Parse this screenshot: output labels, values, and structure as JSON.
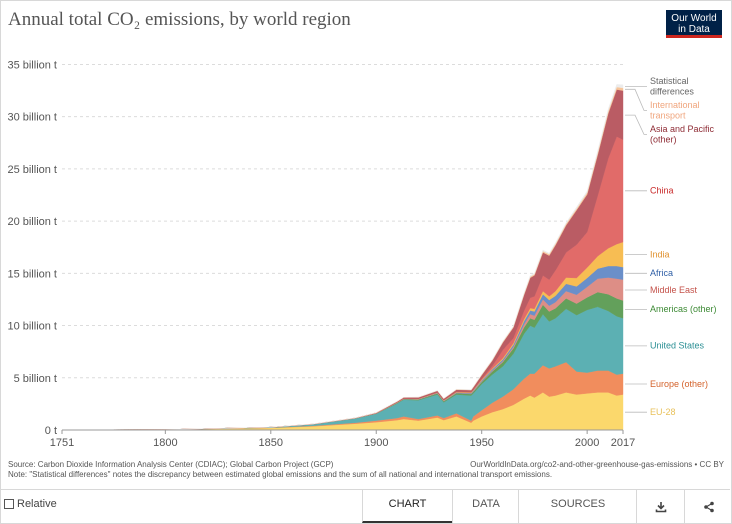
{
  "header": {
    "title": "Annual total CO₂ emissions, by world region",
    "logo_line1": "Our World",
    "logo_line2": "in Data",
    "logo_bg": "#002147",
    "logo_accent": "#ce261e"
  },
  "chart_data": {
    "type": "area",
    "stacked": true,
    "x": [
      1751,
      1800,
      1850,
      1870,
      1890,
      1900,
      1910,
      1913,
      1920,
      1929,
      1932,
      1938,
      1945,
      1946,
      1950,
      1955,
      1960,
      1965,
      1970,
      1973,
      1975,
      1979,
      1982,
      1985,
      1990,
      1995,
      2000,
      2005,
      2010,
      2014,
      2017
    ],
    "series": [
      {
        "name": "EU-28",
        "color": "#fbd86c",
        "label_color": "#e8c15b",
        "values": [
          0.01,
          0.03,
          0.2,
          0.35,
          0.6,
          0.75,
          0.95,
          1.05,
          0.9,
          1.2,
          0.95,
          1.3,
          0.7,
          0.9,
          1.3,
          1.7,
          2.0,
          2.4,
          3.0,
          3.3,
          3.1,
          3.6,
          3.2,
          3.3,
          3.6,
          3.4,
          3.5,
          3.6,
          3.6,
          3.3,
          3.4
        ]
      },
      {
        "name": "Europe (other)",
        "color": "#f18d5d",
        "label_color": "#d4632c",
        "values": [
          0,
          0,
          0.02,
          0.05,
          0.1,
          0.15,
          0.2,
          0.25,
          0.15,
          0.2,
          0.2,
          0.3,
          0.2,
          0.4,
          0.6,
          0.9,
          1.2,
          1.5,
          1.9,
          2.1,
          2.3,
          2.6,
          2.7,
          2.8,
          2.9,
          2.2,
          2.0,
          2.1,
          2.1,
          2.0,
          2.0
        ]
      },
      {
        "name": "United States",
        "color": "#5cb0b3",
        "label_color": "#2b8f94",
        "values": [
          0,
          0.01,
          0.05,
          0.15,
          0.4,
          0.65,
          1.4,
          1.6,
          1.8,
          2.0,
          1.5,
          1.8,
          2.4,
          2.2,
          2.5,
          2.7,
          2.9,
          3.4,
          4.3,
          4.6,
          4.4,
          4.9,
          4.5,
          4.6,
          5.1,
          5.4,
          6.0,
          6.1,
          5.7,
          5.6,
          5.3
        ]
      },
      {
        "name": "Americas (other)",
        "color": "#63a05b",
        "label_color": "#3d8a35",
        "values": [
          0,
          0,
          0,
          0.01,
          0.02,
          0.03,
          0.05,
          0.06,
          0.07,
          0.1,
          0.1,
          0.12,
          0.15,
          0.16,
          0.2,
          0.3,
          0.4,
          0.5,
          0.6,
          0.7,
          0.75,
          0.9,
          0.95,
          0.95,
          1.0,
          1.1,
          1.2,
          1.4,
          1.6,
          1.7,
          1.7
        ]
      },
      {
        "name": "Middle East",
        "color": "#dd8e86",
        "label_color": "#c4524a",
        "values": [
          0,
          0,
          0,
          0,
          0,
          0,
          0,
          0,
          0.01,
          0.01,
          0.01,
          0.02,
          0.03,
          0.03,
          0.05,
          0.08,
          0.1,
          0.15,
          0.3,
          0.4,
          0.4,
          0.5,
          0.55,
          0.6,
          0.7,
          0.85,
          1.0,
          1.3,
          1.6,
          1.9,
          2.0
        ]
      },
      {
        "name": "Africa",
        "color": "#6a8fc9",
        "label_color": "#2f5fa6",
        "values": [
          0,
          0,
          0,
          0,
          0.005,
          0.01,
          0.02,
          0.02,
          0.03,
          0.04,
          0.04,
          0.05,
          0.06,
          0.07,
          0.1,
          0.12,
          0.15,
          0.2,
          0.3,
          0.35,
          0.4,
          0.5,
          0.55,
          0.6,
          0.7,
          0.8,
          0.85,
          0.95,
          1.1,
          1.2,
          1.2
        ]
      },
      {
        "name": "India",
        "color": "#f7bd53",
        "label_color": "#e0922f",
        "values": [
          0,
          0,
          0,
          0,
          0.01,
          0.02,
          0.03,
          0.03,
          0.03,
          0.04,
          0.04,
          0.05,
          0.06,
          0.06,
          0.07,
          0.08,
          0.12,
          0.15,
          0.2,
          0.22,
          0.25,
          0.3,
          0.35,
          0.45,
          0.6,
          0.8,
          1.0,
          1.2,
          1.7,
          2.1,
          2.4
        ]
      },
      {
        "name": "China",
        "color": "#e16b69",
        "label_color": "#c92a2a",
        "values": [
          0,
          0,
          0,
          0,
          0,
          0,
          0.01,
          0.01,
          0.01,
          0.01,
          0.01,
          0.02,
          0.02,
          0.02,
          0.08,
          0.25,
          0.8,
          0.5,
          0.8,
          1.0,
          1.2,
          1.5,
          1.6,
          2.0,
          2.4,
          3.2,
          3.4,
          5.8,
          8.6,
          10.3,
          9.8
        ]
      },
      {
        "name": "Asia and Pacific (other)",
        "color": "#ba5c64",
        "label_color": "#8e2b34",
        "values": [
          0,
          0,
          0,
          0.01,
          0.02,
          0.05,
          0.08,
          0.1,
          0.12,
          0.15,
          0.15,
          0.2,
          0.2,
          0.25,
          0.35,
          0.5,
          0.7,
          1.0,
          1.5,
          1.9,
          2.0,
          2.2,
          2.3,
          2.4,
          2.6,
          3.3,
          3.6,
          3.9,
          4.3,
          4.5,
          4.7
        ]
      },
      {
        "name": "International transport",
        "color": "#f7c59a",
        "label_color": "#f0a57d",
        "values": [
          0,
          0,
          0,
          0,
          0,
          0,
          0.01,
          0.01,
          0.02,
          0.02,
          0.02,
          0.03,
          0.03,
          0.04,
          0.05,
          0.06,
          0.07,
          0.08,
          0.1,
          0.12,
          0.12,
          0.13,
          0.14,
          0.14,
          0.15,
          0.15,
          0.18,
          0.2,
          0.22,
          0.24,
          0.25
        ]
      },
      {
        "name": "Statistical differences",
        "color": "#ececec",
        "label_color": "#666666",
        "values": [
          0,
          0,
          0,
          0,
          0,
          0,
          0,
          0,
          0.01,
          0.01,
          0.01,
          0.02,
          0.02,
          0.02,
          0.03,
          0.04,
          0.05,
          0.06,
          0.08,
          0.1,
          0.1,
          0.1,
          0.1,
          0.1,
          0.1,
          0.15,
          0.15,
          0.2,
          0.2,
          0.25,
          0.3
        ]
      }
    ],
    "legend_labels": [
      {
        "lines": [
          "Statistical",
          "differences"
        ]
      },
      {
        "lines": [
          "International",
          "transport"
        ]
      },
      {
        "lines": [
          "Asia and Pacific",
          "(other)"
        ]
      },
      {
        "lines": [
          "China"
        ]
      },
      {
        "lines": [
          "India"
        ]
      },
      {
        "lines": [
          "Africa"
        ]
      },
      {
        "lines": [
          "Middle East"
        ]
      },
      {
        "lines": [
          "Americas (other)"
        ]
      },
      {
        "lines": [
          "United States"
        ]
      },
      {
        "lines": [
          "Europe (other)"
        ]
      },
      {
        "lines": [
          "EU-28"
        ]
      }
    ],
    "xlim": [
      1751,
      2017
    ],
    "ylim": [
      0,
      36
    ],
    "x_ticks": [
      "1751",
      "1800",
      "1850",
      "1900",
      "1950",
      "2000",
      "2017"
    ],
    "y_ticks": [
      "0 t",
      "5 billion t",
      "10 billion t",
      "15 billion t",
      "20 billion t",
      "25 billion t",
      "30 billion t",
      "35 billion t"
    ],
    "y_tick_values": [
      0,
      5,
      10,
      15,
      20,
      25,
      30,
      35
    ],
    "x_tick_values": [
      1751,
      1800,
      1850,
      1900,
      1950,
      2000,
      2017
    ],
    "grid": true,
    "legend_position": "right"
  },
  "footer": {
    "source_text": "Source: Carbon Dioxide Information Analysis Center (CDIAC); Global Carbon Project (GCP)",
    "note_text": "Note: \"Statistical differences\" notes the discrepancy between estimated global emissions and the sum of all national and international transport emissions.",
    "url_text": "OurWorldInData.org/co2-and-other-greenhouse-gas-emissions • CC BY"
  },
  "controls": {
    "relative_label": "Relative",
    "tab_chart": "CHART",
    "tab_data": "DATA",
    "tab_sources": "SOURCES",
    "download_icon": "download-icon",
    "share_icon": "share-icon"
  }
}
